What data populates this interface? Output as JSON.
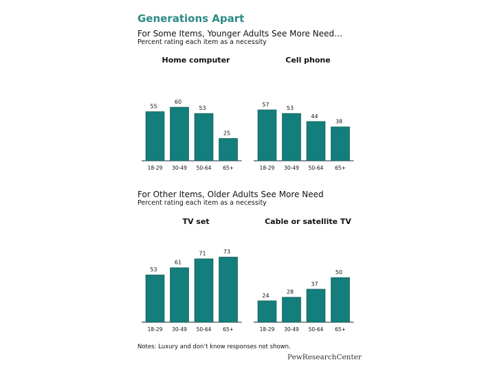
{
  "title": "Generations Apart",
  "section1": {
    "title": "For Some Items, Younger Adults See More Need…",
    "subtitle": "Percent rating each item as a necessity"
  },
  "section2": {
    "title": "For Other Items, Older Adults See More Need",
    "subtitle": "Percent rating each item as a necessity"
  },
  "notes": "Notes: Luxury and don’t know responses not shown.",
  "logo": "PewResearchCenter",
  "colors": {
    "bar": "#137e7b",
    "title": "#2a8a84"
  },
  "chart_data": [
    {
      "type": "bar",
      "title": "Home computer",
      "categories": [
        "18-29",
        "30-49",
        "50-64",
        "65+"
      ],
      "values": [
        55,
        60,
        53,
        25
      ],
      "ylim": [
        0,
        100
      ]
    },
    {
      "type": "bar",
      "title": "Cell phone",
      "categories": [
        "18-29",
        "30-49",
        "50-64",
        "65+"
      ],
      "values": [
        57,
        53,
        44,
        38
      ],
      "ylim": [
        0,
        100
      ]
    },
    {
      "type": "bar",
      "title": "TV set",
      "categories": [
        "18-29",
        "30-49",
        "50-64",
        "65+"
      ],
      "values": [
        53,
        61,
        71,
        73
      ],
      "ylim": [
        0,
        100
      ]
    },
    {
      "type": "bar",
      "title": "Cable or satellite TV",
      "categories": [
        "18-29",
        "30-49",
        "50-64",
        "65+"
      ],
      "values": [
        24,
        28,
        37,
        50
      ],
      "ylim": [
        0,
        100
      ]
    }
  ]
}
